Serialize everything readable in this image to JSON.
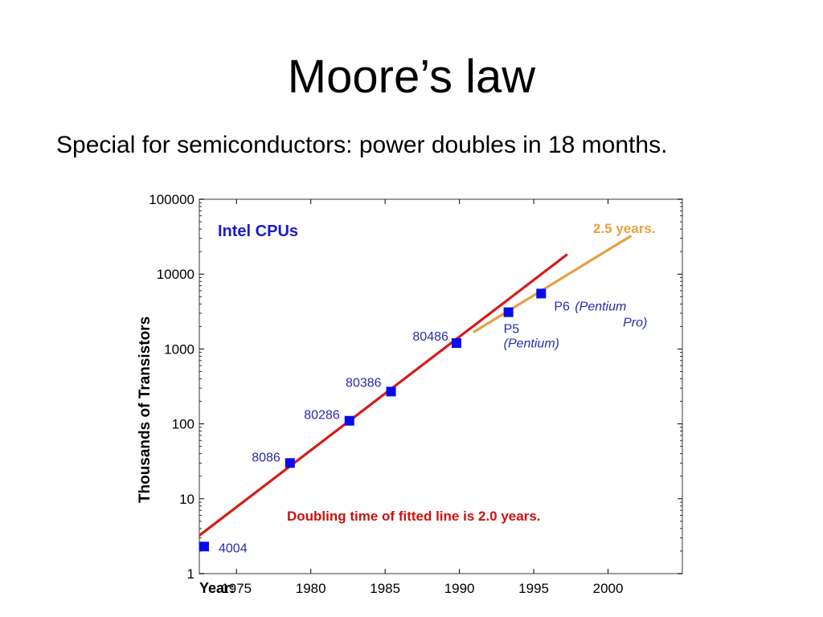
{
  "slide": {
    "title": "Moore’s law",
    "subtitle": "Special for semiconductors: power doubles in 18 months."
  },
  "chart_data": {
    "type": "scatter",
    "title": "Intel CPUs",
    "xlabel": "Year:",
    "ylabel": "Thousands of Transistors",
    "xlim": [
      1972.5,
      2005
    ],
    "ylim": [
      1,
      100000
    ],
    "y_scale": "log",
    "x_ticks": [
      1975,
      1980,
      1985,
      1990,
      1995,
      2000
    ],
    "y_ticks": [
      1,
      10,
      100,
      1000,
      10000,
      100000
    ],
    "y_tick_labels": [
      "1",
      "10",
      "100",
      "1000",
      "10000",
      "100000"
    ],
    "points": [
      {
        "label": "4004",
        "x": 1971.5,
        "y": 2.3
      },
      {
        "label": "8086",
        "x": 1978.6,
        "y": 30
      },
      {
        "label": "80286",
        "x": 1982.6,
        "y": 110
      },
      {
        "label": "80386",
        "x": 1985.4,
        "y": 270
      },
      {
        "label": "80486",
        "x": 1989.8,
        "y": 1200
      },
      {
        "label": "P5",
        "label2": "(Pentium)",
        "x": 1993.3,
        "y": 3100
      },
      {
        "label": "P6",
        "label2": "(Pentium",
        "label3": "Pro)",
        "x": 1995.5,
        "y": 5500
      }
    ],
    "fit_lines": [
      {
        "name": "Doubling time of fitted line is 2.0 years.",
        "color": "#d81a1a",
        "points": [
          [
            1970,
            1.35
          ],
          [
            1997.2,
            18000
          ]
        ]
      },
      {
        "name": "2.5 years.",
        "color": "#e8a040",
        "points": [
          [
            1991,
            1700
          ],
          [
            2001.5,
            32000
          ]
        ]
      }
    ],
    "colors": {
      "marker": "#0a0aef",
      "plot_border": "#7a7a7a"
    }
  }
}
